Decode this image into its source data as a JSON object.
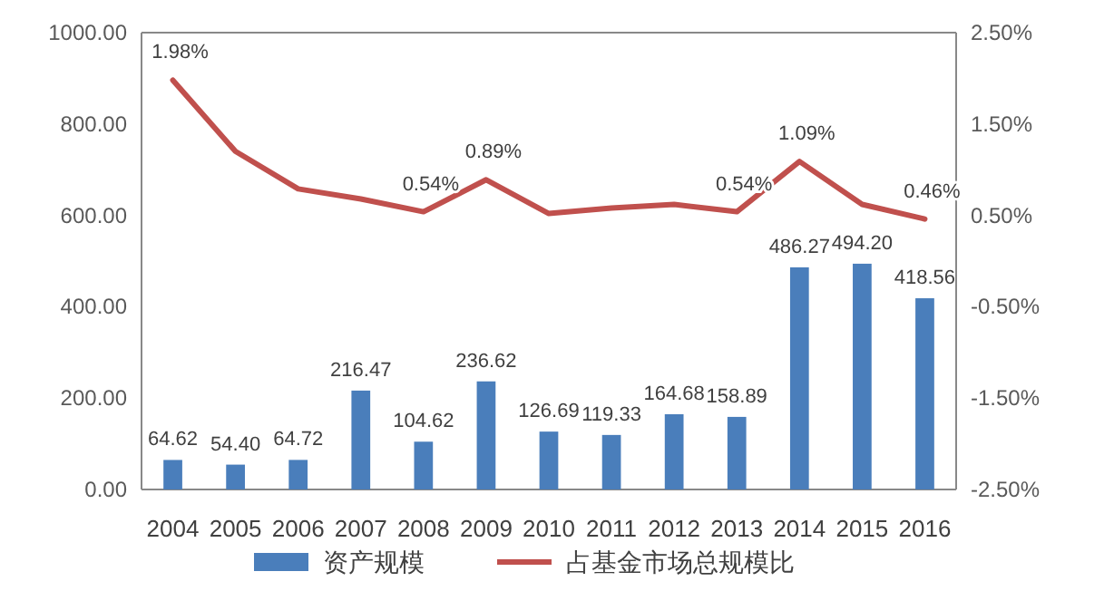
{
  "chart_data": {
    "type": "bar",
    "categories": [
      "2004",
      "2005",
      "2006",
      "2007",
      "2008",
      "2009",
      "2010",
      "2011",
      "2012",
      "2013",
      "2014",
      "2015",
      "2016"
    ],
    "series": [
      {
        "name": "资产规模",
        "color": "#4a7ebb",
        "values": [
          64.62,
          54.4,
          64.72,
          216.47,
          104.62,
          236.62,
          126.69,
          119.33,
          164.68,
          158.89,
          486.27,
          494.2,
          418.56
        ],
        "value_labels": [
          "64.62",
          "54.40",
          "64.72",
          "216.47",
          "104.62",
          "236.62",
          "126.69",
          "119.33",
          "164.68",
          "158.89",
          "486.27",
          "494.20",
          "418.56"
        ]
      },
      {
        "name": "占基金市场总规模比",
        "type": "line",
        "axis": "y2",
        "color": "#c0504d",
        "values": [
          1.98,
          1.2,
          0.79,
          0.68,
          0.54,
          0.89,
          0.52,
          0.58,
          0.62,
          0.54,
          1.09,
          0.62,
          0.46
        ],
        "value_labels": [
          "1.98%",
          null,
          null,
          null,
          "0.54%",
          "0.89%",
          null,
          null,
          null,
          "0.54%",
          "1.09%",
          null,
          "0.46%"
        ]
      }
    ],
    "ylim": [
      0,
      1000
    ],
    "yticks": [
      {
        "value": 0,
        "label": "0.00"
      },
      {
        "value": 200,
        "label": "200.00"
      },
      {
        "value": 400,
        "label": "400.00"
      },
      {
        "value": 600,
        "label": "600.00"
      },
      {
        "value": 800,
        "label": "800.00"
      },
      {
        "value": 1000,
        "label": "1000.00"
      }
    ],
    "y2lim": [
      -2.5,
      2.5
    ],
    "y2ticks": [
      {
        "value": -2.5,
        "label": "-2.50%"
      },
      {
        "value": -1.5,
        "label": "-1.50%"
      },
      {
        "value": -0.5,
        "label": "-0.50%"
      },
      {
        "value": 0.5,
        "label": "0.50%"
      },
      {
        "value": 1.5,
        "label": "1.50%"
      },
      {
        "value": 2.5,
        "label": "2.50%"
      }
    ],
    "legend": "bottom",
    "grid": false
  }
}
